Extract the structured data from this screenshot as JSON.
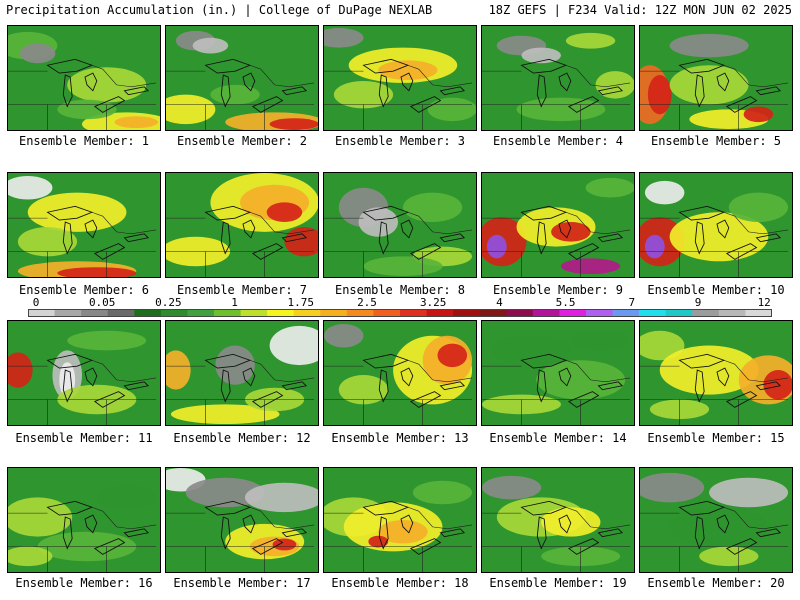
{
  "header": {
    "title": "Precipitation Accumulation (in.) | College of DuPage NEXLAB",
    "run_info": "18Z GEFS | F234 Valid: 12Z MON JUN 02 2025"
  },
  "legend": {
    "tick_labels": [
      "0",
      "0.05",
      "0.25",
      "1",
      "1.75",
      "2.5",
      "3.25",
      "4",
      "5.5",
      "7",
      "9",
      "12"
    ],
    "colors": [
      "#d4d4d4",
      "#a8a8a8",
      "#888888",
      "#6a6a6a",
      "#1e6e1e",
      "#2e8b2e",
      "#3fa23f",
      "#6fbf2f",
      "#bfe02a",
      "#f5f520",
      "#f5d020",
      "#f5b020",
      "#f58a20",
      "#f06020",
      "#e03020",
      "#c81414",
      "#a01010",
      "#801818",
      "#8c0c4c",
      "#b4149c",
      "#e020e0",
      "#b060f0",
      "#6a9af0",
      "#20e0f0",
      "#20c8c8",
      "#9c9c9c",
      "#b8b8b8",
      "#d8d8d8"
    ]
  },
  "panels": [
    {
      "label": "Ensemble Member: 1"
    },
    {
      "label": "Ensemble Member: 2"
    },
    {
      "label": "Ensemble Member: 3"
    },
    {
      "label": "Ensemble Member: 4"
    },
    {
      "label": "Ensemble Member: 5"
    },
    {
      "label": "Ensemble Member: 6"
    },
    {
      "label": "Ensemble Member: 7"
    },
    {
      "label": "Ensemble Member: 8"
    },
    {
      "label": "Ensemble Member: 9"
    },
    {
      "label": "Ensemble Member: 10"
    },
    {
      "label": "Ensemble Member: 11"
    },
    {
      "label": "Ensemble Member: 12"
    },
    {
      "label": "Ensemble Member: 13"
    },
    {
      "label": "Ensemble Member: 14"
    },
    {
      "label": "Ensemble Member: 15"
    },
    {
      "label": "Ensemble Member: 16"
    },
    {
      "label": "Ensemble Member: 17"
    },
    {
      "label": "Ensemble Member: 18"
    },
    {
      "label": "Ensemble Member: 19"
    },
    {
      "label": "Ensemble Member: 20"
    }
  ]
}
